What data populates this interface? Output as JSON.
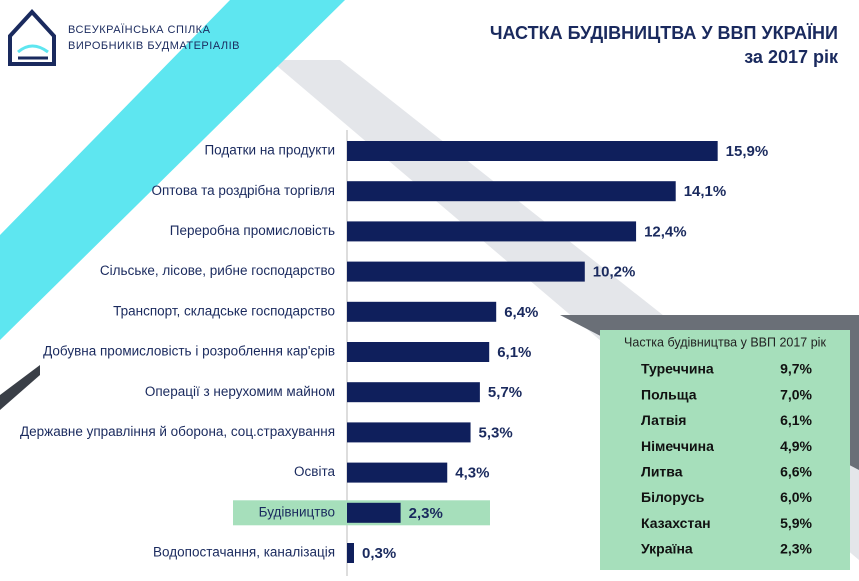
{
  "logo": {
    "lines": [
      "ВСЕУКРАЇНСЬКА СПІЛКА",
      "ВИРОБНИКІВ БУДМАТЕРІАЛІВ"
    ]
  },
  "chart_data": {
    "type": "bar",
    "orientation": "horizontal",
    "title": "ЧАСТКА БУДІВНИЦТВА У ВВП УКРАЇНИ",
    "subtitle": "за 2017 рік",
    "categories": [
      "Податки на продукти",
      "Оптова та роздрібна торгівля",
      "Переробна промисловість",
      "Сільське, лісове, рибне господарство",
      "Транспорт, складське господарство",
      "Добувна промисловість і розроблення кар'єрів",
      "Операції з нерухомим майном",
      "Державне управління й оборона, соц.страхування",
      "Освіта",
      "Будівництво",
      "Водопостачання, каналізація"
    ],
    "values": [
      15.9,
      14.1,
      12.4,
      10.2,
      6.4,
      6.1,
      5.7,
      5.3,
      4.3,
      2.3,
      0.3
    ],
    "value_labels": [
      "15,9%",
      "14,1%",
      "12,4%",
      "10,2%",
      "6,4%",
      "6,1%",
      "5,7%",
      "5,3%",
      "4,3%",
      "2,3%",
      "0,3%"
    ],
    "color": "#0f1f5c",
    "xlim": [
      0,
      16
    ],
    "highlight": {
      "category": "Будівництво",
      "color": "#a6dfbb"
    }
  },
  "table": {
    "title": "Частка будівництва у ВВП 2017 рік",
    "rows": [
      [
        "Туреччина",
        "9,7%"
      ],
      [
        "Польща",
        "7,0%"
      ],
      [
        "Латвія",
        "6,1%"
      ],
      [
        "Німеччина",
        "4,9%"
      ],
      [
        "Литва",
        "6,6%"
      ],
      [
        "Білорусь",
        "6,0%"
      ],
      [
        "Казахстан",
        "5,9%"
      ],
      [
        "Україна",
        "2,3%"
      ]
    ]
  }
}
